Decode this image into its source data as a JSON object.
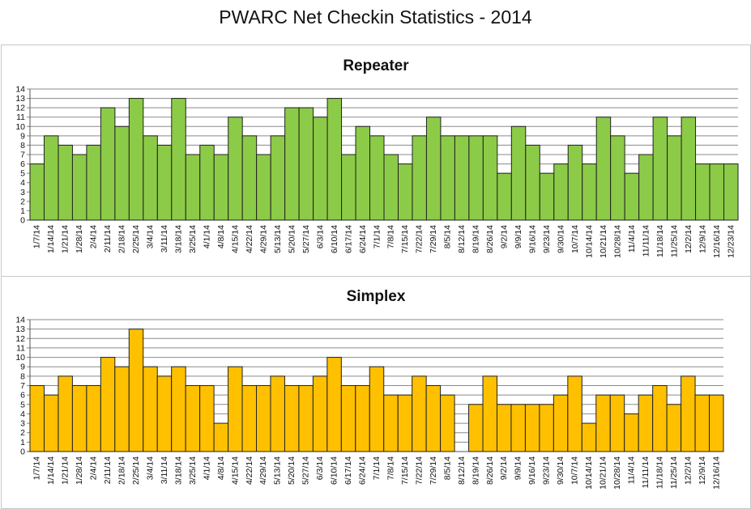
{
  "title": "PWARC Net Checkin Statistics - 2014",
  "chart_data": [
    {
      "type": "bar",
      "title": "Repeater",
      "color": "#8CCB47",
      "ylim": [
        0,
        14
      ],
      "grid": true,
      "categories": [
        "1/7/14",
        "1/14/14",
        "1/21/14",
        "1/28/14",
        "2/4/14",
        "2/11/14",
        "2/18/14",
        "2/25/14",
        "3/4/14",
        "3/11/14",
        "3/18/14",
        "3/25/14",
        "4/1/14",
        "4/8/14",
        "4/15/14",
        "4/22/14",
        "4/29/14",
        "5/13/14",
        "5/20/14",
        "5/27/14",
        "6/3/14",
        "6/10/14",
        "6/17/14",
        "6/24/14",
        "7/1/14",
        "7/8/14",
        "7/15/14",
        "7/22/14",
        "7/29/14",
        "8/5/14",
        "8/12/14",
        "8/19/14",
        "8/26/14",
        "9/2/14",
        "9/9/14",
        "9/16/14",
        "9/23/14",
        "9/30/14",
        "10/7/14",
        "10/14/14",
        "10/21/14",
        "10/28/14",
        "11/4/14",
        "11/11/14",
        "11/18/14",
        "11/25/14",
        "12/2/14",
        "12/9/14",
        "12/16/14",
        "12/23/14"
      ],
      "values": [
        6,
        9,
        8,
        7,
        8,
        12,
        10,
        13,
        9,
        8,
        13,
        7,
        8,
        7,
        11,
        9,
        7,
        9,
        12,
        12,
        11,
        13,
        7,
        10,
        9,
        7,
        6,
        9,
        11,
        9,
        9,
        9,
        9,
        5,
        10,
        8,
        5,
        6,
        8,
        6,
        11,
        9,
        5,
        7,
        11,
        9,
        11,
        6,
        6,
        6
      ]
    },
    {
      "type": "bar",
      "title": "Simplex",
      "color": "#FFC000",
      "ylim": [
        0,
        14
      ],
      "grid": true,
      "categories": [
        "1/7/14",
        "1/14/14",
        "1/21/14",
        "1/28/14",
        "2/4/14",
        "2/11/14",
        "2/18/14",
        "2/25/14",
        "3/4/14",
        "3/11/14",
        "3/18/14",
        "3/25/14",
        "4/1/14",
        "4/8/14",
        "4/15/14",
        "4/22/14",
        "4/29/14",
        "5/13/14",
        "5/20/14",
        "5/27/14",
        "6/3/14",
        "6/10/14",
        "6/17/14",
        "6/24/14",
        "7/1/14",
        "7/8/14",
        "7/15/14",
        "7/22/14",
        "7/29/14",
        "8/5/14",
        "8/12/14",
        "8/19/14",
        "8/26/14",
        "9/2/14",
        "9/9/14",
        "9/16/14",
        "9/23/14",
        "9/30/14",
        "10/7/14",
        "10/14/14",
        "10/21/14",
        "10/28/14",
        "11/4/14",
        "11/11/14",
        "11/18/14",
        "11/25/14",
        "12/2/14",
        "12/9/14",
        "12/16/14"
      ],
      "values": [
        7,
        6,
        8,
        7,
        7,
        10,
        9,
        13,
        9,
        8,
        9,
        7,
        7,
        3,
        9,
        7,
        7,
        8,
        7,
        7,
        8,
        10,
        7,
        7,
        9,
        6,
        6,
        8,
        7,
        6,
        0,
        5,
        8,
        5,
        5,
        5,
        5,
        6,
        8,
        3,
        6,
        6,
        4,
        6,
        7,
        5,
        8,
        6,
        6
      ]
    }
  ]
}
